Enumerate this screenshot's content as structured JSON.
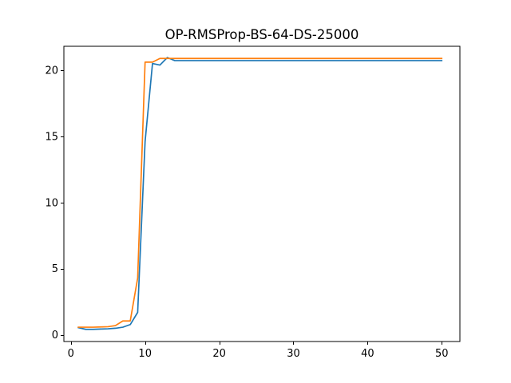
{
  "chart_data": {
    "type": "line",
    "title": "OP-RMSProp-BS-64-DS-25000",
    "xlabel": "",
    "ylabel": "",
    "xlim": [
      -0.95,
      52.45
    ],
    "ylim": [
      -0.5,
      21.8
    ],
    "xticks": [
      0,
      10,
      20,
      30,
      40,
      50
    ],
    "yticks": [
      0,
      5,
      10,
      15,
      20
    ],
    "grid": false,
    "legend": null,
    "series": [
      {
        "color": "#1f77b4",
        "x": [
          1,
          2,
          3,
          4,
          5,
          6,
          7,
          8,
          9,
          10,
          11,
          12,
          13,
          14,
          15,
          16,
          17,
          18,
          19,
          20,
          21,
          22,
          23,
          24,
          25,
          26,
          27,
          28,
          29,
          30,
          31,
          32,
          33,
          34,
          35,
          36,
          37,
          38,
          39,
          40,
          41,
          42,
          43,
          44,
          45,
          46,
          47,
          48,
          49,
          50
        ],
        "values": [
          0.55,
          0.42,
          0.42,
          0.44,
          0.46,
          0.5,
          0.58,
          0.78,
          1.7,
          14.6,
          20.5,
          20.38,
          20.95,
          20.72,
          20.72,
          20.72,
          20.72,
          20.72,
          20.72,
          20.72,
          20.72,
          20.72,
          20.72,
          20.72,
          20.72,
          20.72,
          20.72,
          20.72,
          20.72,
          20.72,
          20.72,
          20.72,
          20.72,
          20.72,
          20.72,
          20.72,
          20.72,
          20.72,
          20.72,
          20.72,
          20.72,
          20.72,
          20.72,
          20.72,
          20.72,
          20.72,
          20.72,
          20.72,
          20.72,
          20.72
        ]
      },
      {
        "color": "#ff7f0e",
        "x": [
          1,
          2,
          3,
          4,
          5,
          6,
          7,
          8,
          9,
          10,
          11,
          12,
          13,
          14,
          15,
          16,
          17,
          18,
          19,
          20,
          21,
          22,
          23,
          24,
          25,
          26,
          27,
          28,
          29,
          30,
          31,
          32,
          33,
          34,
          35,
          36,
          37,
          38,
          39,
          40,
          41,
          42,
          43,
          44,
          45,
          46,
          47,
          48,
          49,
          50
        ],
        "values": [
          0.58,
          0.58,
          0.58,
          0.6,
          0.62,
          0.7,
          1.05,
          1.05,
          4.3,
          20.6,
          20.6,
          20.88,
          20.88,
          20.88,
          20.88,
          20.88,
          20.88,
          20.88,
          20.88,
          20.88,
          20.88,
          20.88,
          20.88,
          20.88,
          20.88,
          20.88,
          20.88,
          20.88,
          20.88,
          20.88,
          20.88,
          20.88,
          20.88,
          20.88,
          20.88,
          20.88,
          20.88,
          20.88,
          20.88,
          20.88,
          20.88,
          20.88,
          20.88,
          20.88,
          20.88,
          20.88,
          20.88,
          20.88,
          20.88,
          20.88
        ]
      }
    ]
  }
}
